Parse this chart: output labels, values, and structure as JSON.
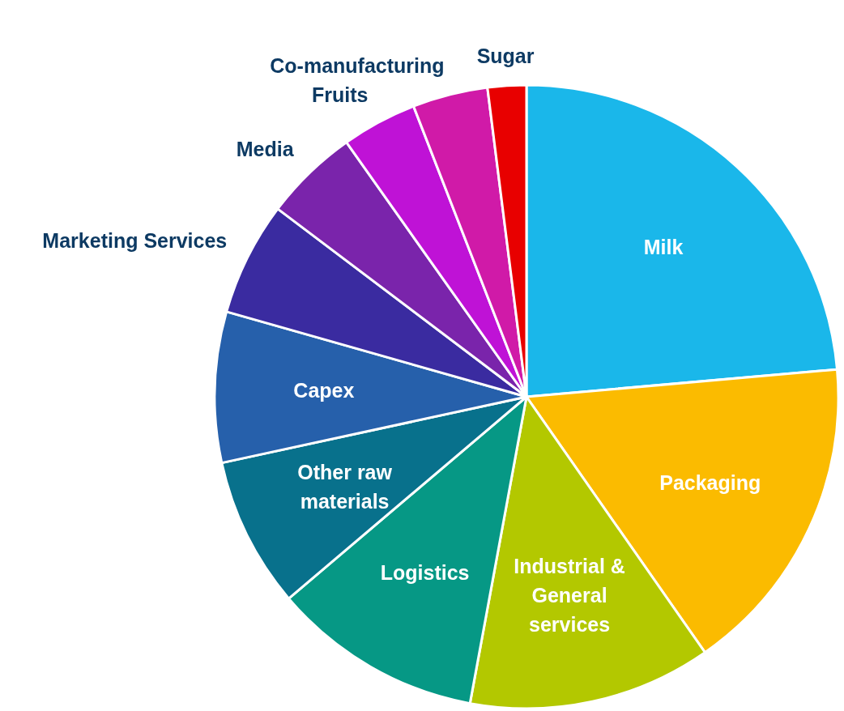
{
  "chart_data": {
    "type": "pie",
    "categories": [
      "Milk",
      "Packaging",
      "Industrial & General services",
      "Logistics",
      "Other raw materials",
      "Capex",
      "Marketing Services",
      "Media",
      "Fruits",
      "Co-manufacturing",
      "Sugar"
    ],
    "values": [
      23.6,
      16.7,
      12.6,
      10.9,
      7.8,
      7.8,
      5.9,
      4.9,
      3.9,
      3.9,
      2.0
    ],
    "colors": [
      "#1ab7ea",
      "#fbbb00",
      "#b3c800",
      "#069885",
      "#08718c",
      "#2660ab",
      "#3a2ba0",
      "#7a24ab",
      "#bf12d6",
      "#d01aa8",
      "#e80000"
    ],
    "legend": false
  }
}
